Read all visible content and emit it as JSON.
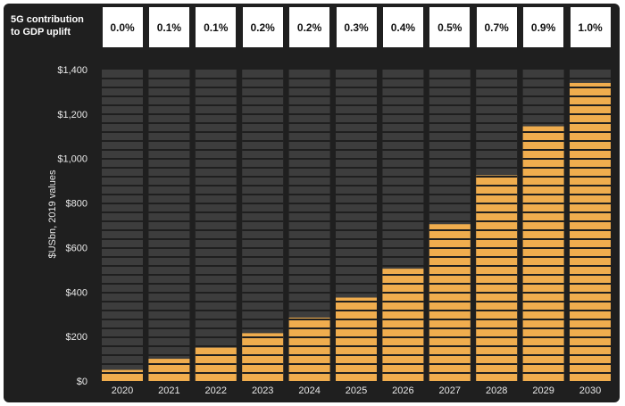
{
  "header": {
    "gdp_label_line1": "5G contribution",
    "gdp_label_line2": "to GDP uplift"
  },
  "colors": {
    "background": "#1f1f1f",
    "bar_track": "#3d3d3d",
    "bar_fill": "#f0ad4e",
    "stripe": "#1f1f1f"
  },
  "chart_data": {
    "type": "bar",
    "title": "",
    "xlabel": "",
    "ylabel": "$USbn, 2019 values",
    "ylim": [
      0,
      1400
    ],
    "yticks": [
      "$0",
      "$200",
      "$400",
      "$600",
      "$800",
      "$1,000",
      "$1,200",
      "$1,400"
    ],
    "ytick_values": [
      0,
      200,
      400,
      600,
      800,
      1000,
      1200,
      1400
    ],
    "categories": [
      "2020",
      "2021",
      "2022",
      "2023",
      "2024",
      "2025",
      "2026",
      "2027",
      "2028",
      "2029",
      "2030"
    ],
    "values": [
      50,
      100,
      150,
      215,
      285,
      375,
      505,
      705,
      925,
      1145,
      1340
    ],
    "gdp_uplift": [
      "0.0%",
      "0.1%",
      "0.1%",
      "0.2%",
      "0.2%",
      "0.3%",
      "0.4%",
      "0.5%",
      "0.7%",
      "0.9%",
      "1.0%"
    ],
    "grid": false,
    "legend": "none"
  }
}
